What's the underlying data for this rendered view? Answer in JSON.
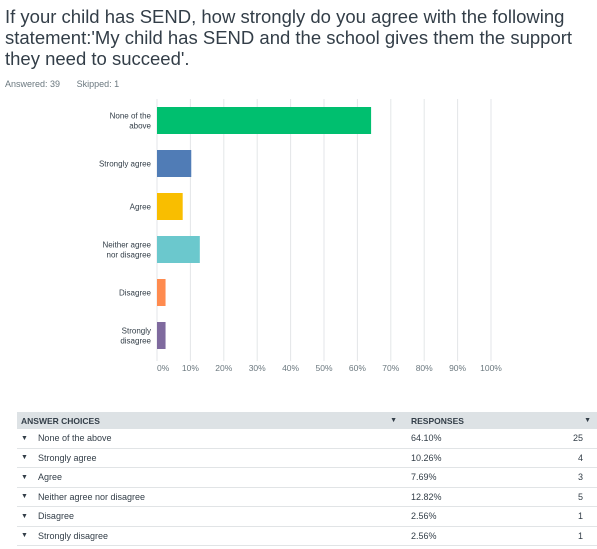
{
  "question": {
    "title": "If your child has SEND, how strongly do you agree with the following statement:'My child has SEND and the school gives them the support they need to succeed'."
  },
  "stats": {
    "answered": "Answered: 39",
    "skipped": "Skipped: 1"
  },
  "chart_data": {
    "type": "bar",
    "orientation": "horizontal",
    "categories": [
      [
        "None of the",
        "above"
      ],
      [
        "Strongly agree"
      ],
      [
        "Agree"
      ],
      [
        "Neither agree",
        "nor disagree"
      ],
      [
        "Disagree"
      ],
      [
        "Strongly",
        "disagree"
      ]
    ],
    "values": [
      64.1,
      10.26,
      7.69,
      12.82,
      2.56,
      2.56
    ],
    "colors": [
      "#00bf6f",
      "#507cb6",
      "#f9be00",
      "#6bc8cd",
      "#ff8b4f",
      "#7f6a9e"
    ],
    "xlim": [
      0,
      100
    ],
    "ticks": [
      "0%",
      "10%",
      "20%",
      "30%",
      "40%",
      "50%",
      "60%",
      "70%",
      "80%",
      "90%",
      "100%"
    ],
    "grid": true
  },
  "table": {
    "header_choices": "ANSWER CHOICES",
    "header_responses": "RESPONSES",
    "rows": [
      {
        "choice": "None of the above",
        "pct": "64.10%",
        "count": "25"
      },
      {
        "choice": "Strongly agree",
        "pct": "10.26%",
        "count": "4"
      },
      {
        "choice": "Agree",
        "pct": "7.69%",
        "count": "3"
      },
      {
        "choice": "Neither agree nor disagree",
        "pct": "12.82%",
        "count": "5"
      },
      {
        "choice": "Disagree",
        "pct": "2.56%",
        "count": "1"
      },
      {
        "choice": "Strongly disagree",
        "pct": "2.56%",
        "count": "1"
      }
    ]
  }
}
